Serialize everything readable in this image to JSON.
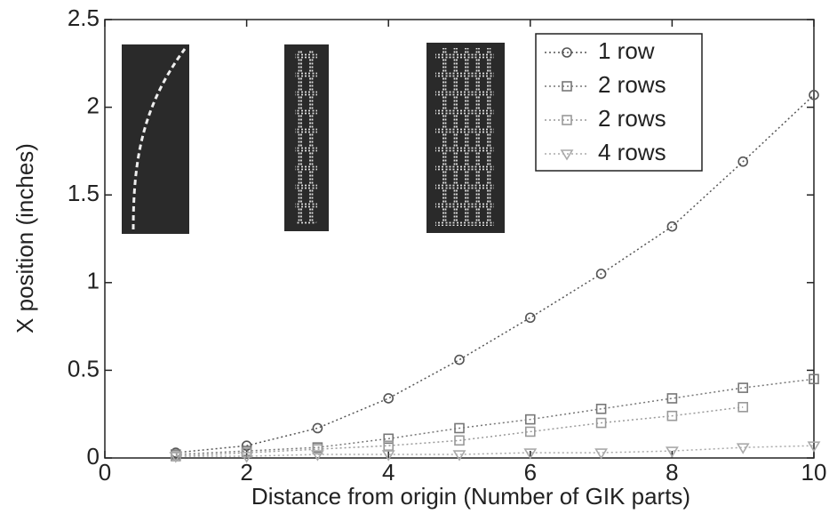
{
  "chart_data": {
    "type": "line",
    "xlabel": "Distance from origin (Number of GIK parts)",
    "ylabel": "X position (inches)",
    "x": [
      1,
      2,
      3,
      4,
      5,
      6,
      7,
      8,
      9,
      10
    ],
    "series": [
      {
        "name": "1 row",
        "color": "#555555",
        "marker": "circle",
        "values": [
          0.03,
          0.07,
          0.17,
          0.34,
          0.56,
          0.8,
          1.05,
          1.32,
          1.69,
          2.07
        ]
      },
      {
        "name": "2 rows",
        "color": "#777777",
        "marker": "square",
        "values": [
          0.02,
          0.04,
          0.06,
          0.11,
          0.17,
          0.22,
          0.28,
          0.34,
          0.4,
          0.45
        ]
      },
      {
        "name": "2 rows",
        "color": "#999999",
        "marker": "square",
        "values": [
          0.01,
          0.03,
          0.05,
          0.07,
          0.1,
          0.15,
          0.2,
          0.24,
          0.29,
          null
        ]
      },
      {
        "name": "4 rows",
        "color": "#aaaaaa",
        "marker": "triangle",
        "values": [
          0.01,
          0.01,
          0.02,
          0.02,
          0.02,
          0.03,
          0.03,
          0.04,
          0.06,
          0.07
        ]
      }
    ],
    "xlim": [
      0,
      10
    ],
    "xticks": [
      0,
      2,
      4,
      6,
      8,
      10
    ],
    "ylim": [
      0,
      2.5
    ],
    "yticks": [
      0,
      0.5,
      1,
      1.5,
      2,
      2.5
    ],
    "grid": false,
    "legend": "upper right"
  }
}
